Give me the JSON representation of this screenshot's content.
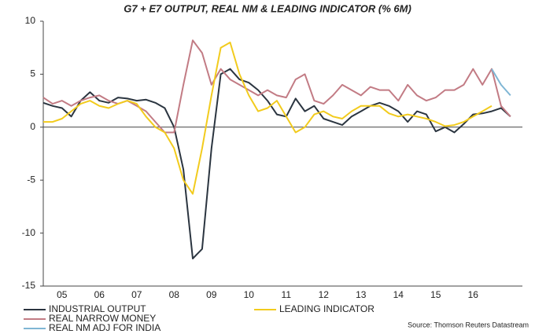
{
  "chart_data": {
    "type": "line",
    "title": "G7 + E7 OUTPUT, REAL NM & LEADING INDICATOR (% 6M)",
    "source": "Source: Thomson Reuters Datastream",
    "x": [
      2005,
      2005.25,
      2005.5,
      2005.75,
      2006,
      2006.25,
      2006.5,
      2006.75,
      2007,
      2007.25,
      2007.5,
      2007.75,
      2008,
      2008.25,
      2008.5,
      2008.75,
      2009,
      2009.25,
      2009.5,
      2009.75,
      2010,
      2010.25,
      2010.5,
      2010.75,
      2011,
      2011.25,
      2011.5,
      2011.75,
      2012,
      2012.25,
      2012.5,
      2012.75,
      2013,
      2013.25,
      2013.5,
      2013.75,
      2014,
      2014.25,
      2014.5,
      2014.75,
      2015,
      2015.25,
      2015.5,
      2015.75,
      2016,
      2016.25,
      2016.5,
      2016.75,
      2017,
      2017.25,
      2017.5
    ],
    "series": [
      {
        "name": "INDUSTRIAL OUTPUT",
        "color": "#2b3540",
        "values": [
          2.3,
          2.0,
          1.8,
          1.0,
          2.5,
          3.3,
          2.5,
          2.3,
          2.8,
          2.7,
          2.5,
          2.6,
          2.3,
          1.8,
          0.0,
          -4.0,
          -12.4,
          -11.5,
          -2.0,
          5.0,
          5.5,
          4.5,
          4.2,
          3.5,
          2.5,
          1.2,
          1.0,
          2.7,
          1.5,
          2.0,
          0.8,
          0.5,
          0.2,
          1.0,
          1.5,
          2.0,
          2.3,
          2.0,
          1.5,
          0.5,
          1.5,
          1.2,
          -0.4,
          0.0,
          -0.5,
          0.3,
          1.2,
          1.3,
          1.5,
          1.8,
          1.0
        ]
      },
      {
        "name": "REAL NARROW MONEY",
        "color": "#c27b84",
        "values": [
          2.8,
          2.2,
          2.5,
          2.0,
          2.5,
          2.8,
          3.0,
          2.5,
          2.2,
          2.5,
          2.0,
          1.5,
          0.5,
          -0.5,
          -0.5,
          4.0,
          8.2,
          7.0,
          4.0,
          5.5,
          4.5,
          4.0,
          3.5,
          3.0,
          3.5,
          3.0,
          2.8,
          4.5,
          5.0,
          2.5,
          2.2,
          3.0,
          4.0,
          3.5,
          3.0,
          3.8,
          3.5,
          3.5,
          2.5,
          4.0,
          3.0,
          2.5,
          2.8,
          3.5,
          3.5,
          4.0,
          5.5,
          4.0,
          5.5,
          2.0,
          1.0
        ]
      },
      {
        "name": "REAL NM ADJ FOR INDIA",
        "color": "#7fb6d4",
        "values": [
          null,
          null,
          null,
          null,
          null,
          null,
          null,
          null,
          null,
          null,
          null,
          null,
          null,
          null,
          null,
          null,
          null,
          null,
          null,
          null,
          null,
          null,
          null,
          null,
          null,
          null,
          null,
          null,
          null,
          null,
          null,
          null,
          null,
          null,
          null,
          null,
          null,
          null,
          null,
          null,
          null,
          null,
          null,
          null,
          null,
          null,
          null,
          null,
          5.5,
          4.0,
          3.0
        ]
      },
      {
        "name": "LEADING INDICATOR",
        "color": "#f2cb1d",
        "values": [
          0.5,
          0.5,
          0.8,
          1.5,
          2.2,
          2.5,
          2.0,
          1.8,
          2.2,
          2.5,
          2.2,
          1.0,
          0.0,
          -0.5,
          -2.0,
          -5.0,
          -6.3,
          -2.0,
          3.0,
          7.5,
          8.0,
          5.0,
          3.0,
          1.5,
          1.8,
          2.5,
          1.0,
          -0.5,
          0.0,
          1.2,
          1.5,
          1.0,
          0.8,
          1.5,
          2.0,
          2.0,
          2.0,
          1.3,
          1.0,
          1.2,
          1.0,
          0.8,
          0.5,
          0.1,
          0.2,
          0.5,
          1.0,
          1.5,
          2.0,
          null,
          null
        ]
      }
    ],
    "xlim": [
      2005,
      2017.82
    ],
    "xticks": [
      {
        "value": 2005.5,
        "label": "05"
      },
      {
        "value": 2006.5,
        "label": "06"
      },
      {
        "value": 2007.5,
        "label": "07"
      },
      {
        "value": 2008.5,
        "label": "08"
      },
      {
        "value": 2009.5,
        "label": "09"
      },
      {
        "value": 2010.5,
        "label": "10"
      },
      {
        "value": 2011.5,
        "label": "11"
      },
      {
        "value": 2012.5,
        "label": "12"
      },
      {
        "value": 2013.5,
        "label": "13"
      },
      {
        "value": 2014.5,
        "label": "14"
      },
      {
        "value": 2015.5,
        "label": "15"
      },
      {
        "value": 2016.5,
        "label": "16"
      }
    ],
    "ylim": [
      -15,
      10
    ],
    "yticks": [
      -15,
      -10,
      -5,
      0,
      5,
      10
    ],
    "grid": false
  }
}
